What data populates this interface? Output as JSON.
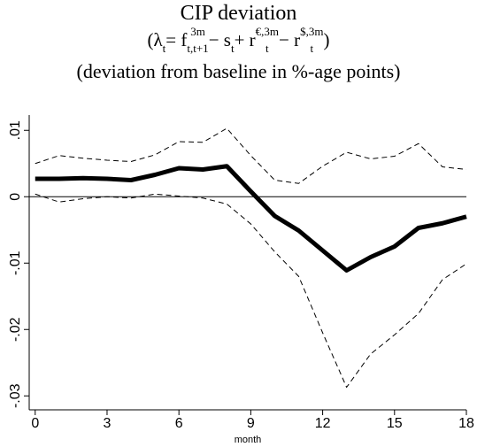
{
  "chart_data": {
    "type": "line",
    "title": "CIP deviation",
    "subtitle": [
      {
        "base": "(λ",
        "sub": "t"
      },
      {
        "base": " = f",
        "sup": "3m",
        "sub": "t,t+1"
      },
      {
        "base": " − s",
        "sub": "t"
      },
      {
        "base": " + r",
        "sup": "€,3m",
        "sub": "t"
      },
      {
        "base": " − r",
        "sup": "$,3m",
        "sub": "t"
      },
      {
        "base": ")"
      }
    ],
    "subtitle2": "(deviation from baseline in %-age points)",
    "x_label": "month",
    "x": [
      0,
      1,
      2,
      3,
      4,
      5,
      6,
      7,
      8,
      9,
      10,
      11,
      12,
      13,
      14,
      15,
      16,
      17,
      18
    ],
    "series": [
      {
        "style": "dashed",
        "color": "#000000",
        "values": [
          0.005,
          0.0062,
          0.0058,
          0.0055,
          0.0053,
          0.0063,
          0.0083,
          0.0082,
          0.0103,
          0.0062,
          0.0025,
          0.002,
          0.0046,
          0.0067,
          0.0057,
          0.0061,
          0.008,
          0.0045,
          0.0041
        ]
      },
      {
        "style": "solid",
        "color": "#000000",
        "values": [
          0.0027,
          0.0027,
          0.0028,
          0.0027,
          0.0025,
          0.0033,
          0.0043,
          0.0041,
          0.0046,
          0.0008,
          -0.0029,
          -0.0051,
          -0.0081,
          -0.0111,
          -0.0091,
          -0.0075,
          -0.0047,
          -0.004,
          -0.003
        ]
      },
      {
        "style": "dashed",
        "color": "#000000",
        "values": [
          0.0004,
          -0.0008,
          -0.0003,
          0,
          -0.0002,
          0.0004,
          0.0001,
          -0.0002,
          -0.0011,
          -0.0041,
          -0.0083,
          -0.012,
          -0.0205,
          -0.0287,
          -0.0237,
          -0.0208,
          -0.0176,
          -0.0125,
          -0.0101
        ]
      }
    ],
    "hline": 0,
    "xlim": [
      -0.25,
      18
    ],
    "ylim": [
      -0.0321,
      0.0123
    ],
    "xticks": [
      0,
      3,
      6,
      9,
      12,
      15,
      18
    ],
    "yticks": [
      {
        "value": 0.01,
        "label": ".01"
      },
      0,
      {
        "value": -0.01,
        "label": "-.01"
      },
      {
        "value": -0.02,
        "label": "-.02"
      },
      {
        "value": -0.03,
        "label": "-.03"
      }
    ],
    "grid": false
  }
}
